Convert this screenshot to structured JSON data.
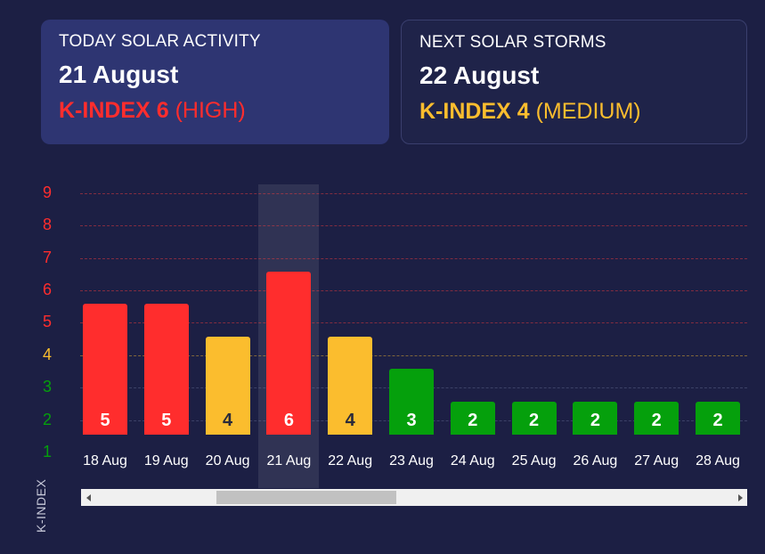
{
  "today_card": {
    "title": "TODAY SOLAR ACTIVITY",
    "date": "21 August",
    "kindex_label": "K-INDEX 6",
    "kindex_level": "(HIGH)",
    "color": "#ff2d2d"
  },
  "next_card": {
    "title": "NEXT SOLAR STORMS",
    "date": "22 August",
    "kindex_label": "K-INDEX 4",
    "kindex_level": "(MEDIUM)",
    "color": "#fbbd2e"
  },
  "colors": {
    "background": "#1c1f44",
    "high": "#ff2d2d",
    "medium": "#fbbd2e",
    "low": "#05a00c"
  },
  "chart_data": {
    "type": "bar",
    "title": "",
    "xlabel": "",
    "ylabel": "K-INDEX",
    "ylim": [
      1,
      9
    ],
    "yticks": [
      1,
      2,
      3,
      4,
      5,
      6,
      7,
      8,
      9
    ],
    "grid": true,
    "highlighted_category": "21 Aug",
    "categories": [
      "18 Aug",
      "19 Aug",
      "20 Aug",
      "21 Aug",
      "22 Aug",
      "23 Aug",
      "24 Aug",
      "25 Aug",
      "26 Aug",
      "27 Aug",
      "28 Aug"
    ],
    "values": [
      5,
      5,
      4,
      6,
      4,
      3,
      2,
      2,
      2,
      2,
      2
    ],
    "levels": [
      "high",
      "high",
      "medium",
      "high",
      "medium",
      "low",
      "low",
      "low",
      "low",
      "low",
      "low"
    ]
  },
  "scrollbar": {
    "left_arrow": "scroll-left",
    "right_arrow": "scroll-right"
  }
}
